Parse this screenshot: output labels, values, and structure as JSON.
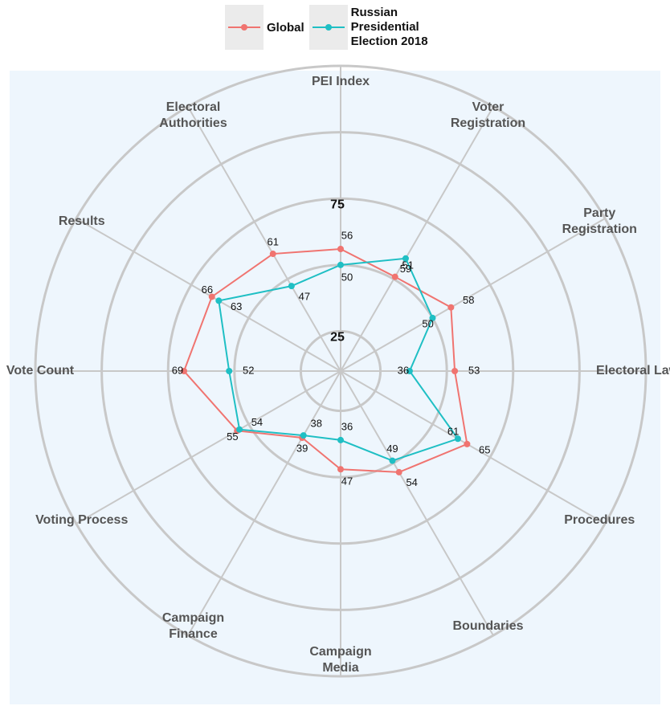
{
  "chart_data": {
    "type": "radar",
    "categories": [
      "PEI Index",
      "Voter Registration",
      "Party Registration",
      "Electoral Laws",
      "Procedures",
      "Boundaries",
      "Campaign Media",
      "Campaign Finance",
      "Voting Process",
      "Vote Count",
      "Results",
      "Electoral Authorities"
    ],
    "series": [
      {
        "name": "Global",
        "color": "#f07470",
        "values": [
          56,
          51,
          58,
          53,
          65,
          54,
          47,
          39,
          55,
          69,
          66,
          61
        ]
      },
      {
        "name": "Russian Presidential Election 2018",
        "color": "#1fbfc4",
        "values": [
          50,
          59,
          50,
          36,
          61,
          49,
          36,
          38,
          54,
          52,
          63,
          47
        ]
      }
    ],
    "ylim": [
      10,
      125
    ],
    "yticks": [
      25,
      75
    ],
    "grid": true,
    "legend": "top"
  }
}
